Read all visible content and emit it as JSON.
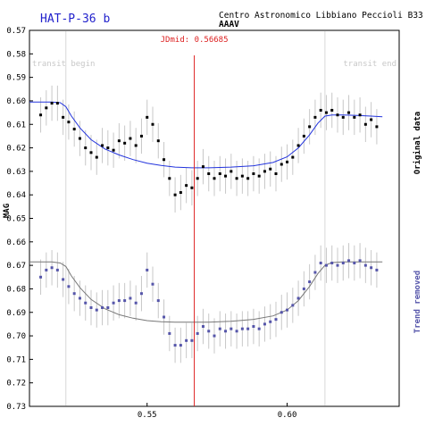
{
  "header": {
    "planet": "HAT-P-36 b",
    "observatory": "Centro Astronomico Libbiano Peccioli B33",
    "observer": "AAAV"
  },
  "chart_data": {
    "type": "scatter",
    "title": "HAT-P-36 b",
    "ylabel": "MAG",
    "xlim": [
      0.508,
      0.64
    ],
    "ylim": [
      0.73,
      0.57
    ],
    "y_inverted": true,
    "xticks": [
      "0.55",
      "0.60"
    ],
    "yticks": [
      "0.57",
      "0.58",
      "0.59",
      "0.60",
      "0.61",
      "0.62",
      "0.63",
      "0.64",
      "0.65",
      "0.66",
      "0.67",
      "0.68",
      "0.69",
      "0.70",
      "0.71",
      "0.72",
      "0.73"
    ],
    "jd_mid_label": "JDmid: 0.56685",
    "jd_mid": 0.56685,
    "transit_begin": {
      "label": "transit begin",
      "x": 0.521
    },
    "transit_end": {
      "label": "transit end",
      "x": 0.6135
    },
    "right_labels": {
      "original": "Original data",
      "detrended": "Trend removed"
    },
    "colors": {
      "original": "#000000",
      "detrended": "#5555aa",
      "model_original": "#2233dd",
      "model_detrended": "#777777",
      "jdmid": "#dd2222",
      "transit": "#d8d8d8",
      "errorbar": "#c8c8c8",
      "planet_title": "#2222cc"
    },
    "series": [
      {
        "name": "Original data",
        "x": [
          0.512,
          0.514,
          0.516,
          0.518,
          0.52,
          0.522,
          0.524,
          0.526,
          0.528,
          0.53,
          0.532,
          0.534,
          0.536,
          0.538,
          0.54,
          0.542,
          0.544,
          0.546,
          0.548,
          0.55,
          0.552,
          0.554,
          0.556,
          0.558,
          0.56,
          0.562,
          0.564,
          0.566,
          0.568,
          0.57,
          0.572,
          0.574,
          0.576,
          0.578,
          0.58,
          0.582,
          0.584,
          0.586,
          0.588,
          0.59,
          0.592,
          0.594,
          0.596,
          0.598,
          0.6,
          0.602,
          0.604,
          0.606,
          0.608,
          0.61,
          0.612,
          0.614,
          0.616,
          0.618,
          0.62,
          0.622,
          0.624,
          0.626,
          0.628,
          0.63,
          0.632
        ],
        "values": [
          0.606,
          0.603,
          0.601,
          0.601,
          0.607,
          0.609,
          0.612,
          0.616,
          0.62,
          0.622,
          0.624,
          0.619,
          0.62,
          0.621,
          0.617,
          0.618,
          0.616,
          0.619,
          0.615,
          0.607,
          0.61,
          0.617,
          0.625,
          0.633,
          0.64,
          0.639,
          0.636,
          0.637,
          0.633,
          0.628,
          0.631,
          0.633,
          0.631,
          0.632,
          0.63,
          0.633,
          0.632,
          0.633,
          0.631,
          0.632,
          0.63,
          0.629,
          0.631,
          0.627,
          0.626,
          0.624,
          0.619,
          0.615,
          0.611,
          0.607,
          0.604,
          0.605,
          0.604,
          0.606,
          0.607,
          0.605,
          0.607,
          0.606,
          0.61,
          0.608,
          0.611
        ]
      },
      {
        "name": "Trend removed",
        "x": [
          0.512,
          0.514,
          0.516,
          0.518,
          0.52,
          0.522,
          0.524,
          0.526,
          0.528,
          0.53,
          0.532,
          0.534,
          0.536,
          0.538,
          0.54,
          0.542,
          0.544,
          0.546,
          0.548,
          0.55,
          0.552,
          0.554,
          0.556,
          0.558,
          0.56,
          0.562,
          0.564,
          0.566,
          0.568,
          0.57,
          0.572,
          0.574,
          0.576,
          0.578,
          0.58,
          0.582,
          0.584,
          0.586,
          0.588,
          0.59,
          0.592,
          0.594,
          0.596,
          0.598,
          0.6,
          0.602,
          0.604,
          0.606,
          0.608,
          0.61,
          0.612,
          0.614,
          0.616,
          0.618,
          0.62,
          0.622,
          0.624,
          0.626,
          0.628,
          0.63,
          0.632
        ],
        "values": [
          0.675,
          0.672,
          0.671,
          0.672,
          0.676,
          0.679,
          0.682,
          0.684,
          0.686,
          0.688,
          0.689,
          0.688,
          0.688,
          0.686,
          0.685,
          0.685,
          0.684,
          0.686,
          0.682,
          0.672,
          0.678,
          0.685,
          0.692,
          0.699,
          0.704,
          0.704,
          0.702,
          0.702,
          0.699,
          0.696,
          0.698,
          0.7,
          0.697,
          0.698,
          0.697,
          0.698,
          0.697,
          0.697,
          0.696,
          0.697,
          0.695,
          0.694,
          0.693,
          0.69,
          0.689,
          0.687,
          0.684,
          0.68,
          0.677,
          0.673,
          0.669,
          0.67,
          0.669,
          0.67,
          0.669,
          0.668,
          0.669,
          0.668,
          0.67,
          0.671,
          0.672
        ]
      }
    ],
    "model_original": {
      "x": [
        0.508,
        0.512,
        0.516,
        0.519,
        0.521,
        0.523,
        0.526,
        0.53,
        0.535,
        0.54,
        0.545,
        0.55,
        0.555,
        0.56,
        0.566,
        0.572,
        0.58,
        0.588,
        0.595,
        0.6,
        0.604,
        0.608,
        0.611,
        0.6135,
        0.616,
        0.62,
        0.625,
        0.63,
        0.634
      ],
      "values": [
        0.6005,
        0.6005,
        0.6005,
        0.6008,
        0.6025,
        0.6065,
        0.6115,
        0.6165,
        0.6205,
        0.623,
        0.625,
        0.6265,
        0.6275,
        0.6282,
        0.6285,
        0.6285,
        0.6282,
        0.6276,
        0.6262,
        0.6238,
        0.62,
        0.6145,
        0.6095,
        0.6065,
        0.606,
        0.606,
        0.6062,
        0.6065,
        0.6068
      ]
    },
    "model_detrended": {
      "x": [
        0.508,
        0.512,
        0.516,
        0.519,
        0.521,
        0.523,
        0.526,
        0.53,
        0.535,
        0.54,
        0.545,
        0.55,
        0.555,
        0.56,
        0.566,
        0.572,
        0.58,
        0.588,
        0.595,
        0.6,
        0.604,
        0.608,
        0.611,
        0.6135,
        0.616,
        0.62,
        0.625,
        0.63,
        0.634
      ],
      "values": [
        0.6685,
        0.6685,
        0.6685,
        0.669,
        0.6705,
        0.6745,
        0.6795,
        0.6845,
        0.6885,
        0.691,
        0.6925,
        0.6935,
        0.694,
        0.6942,
        0.6942,
        0.6942,
        0.6938,
        0.693,
        0.6915,
        0.689,
        0.685,
        0.679,
        0.6735,
        0.67,
        0.6688,
        0.6685,
        0.6685,
        0.6685,
        0.6685
      ]
    }
  }
}
